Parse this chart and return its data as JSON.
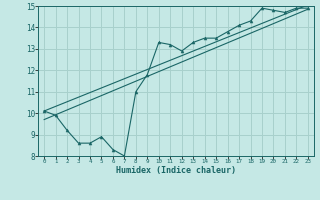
{
  "title": "",
  "xlabel": "Humidex (Indice chaleur)",
  "ylabel": "",
  "bg_color": "#c5e8e5",
  "grid_color": "#a8d0cc",
  "line_color": "#1a6666",
  "xlim": [
    -0.5,
    23.5
  ],
  "ylim": [
    8,
    15
  ],
  "yticks": [
    8,
    9,
    10,
    11,
    12,
    13,
    14,
    15
  ],
  "xticks": [
    0,
    1,
    2,
    3,
    4,
    5,
    6,
    7,
    8,
    9,
    10,
    11,
    12,
    13,
    14,
    15,
    16,
    17,
    18,
    19,
    20,
    21,
    22,
    23
  ],
  "zigzag_x": [
    0,
    1,
    2,
    3,
    4,
    5,
    6,
    7,
    8,
    9,
    10,
    11,
    12,
    13,
    14,
    15,
    16,
    17,
    18,
    19,
    20,
    21,
    22,
    23
  ],
  "zigzag_y": [
    10.1,
    9.9,
    9.2,
    8.6,
    8.6,
    8.9,
    8.3,
    8.0,
    11.0,
    11.8,
    13.3,
    13.2,
    12.9,
    13.3,
    13.5,
    13.5,
    13.8,
    14.1,
    14.3,
    14.9,
    14.8,
    14.7,
    14.9,
    14.9
  ],
  "line1_x": [
    0,
    23
  ],
  "line1_y": [
    9.7,
    14.85
  ],
  "line2_x": [
    0,
    23
  ],
  "line2_y": [
    10.1,
    15.05
  ]
}
